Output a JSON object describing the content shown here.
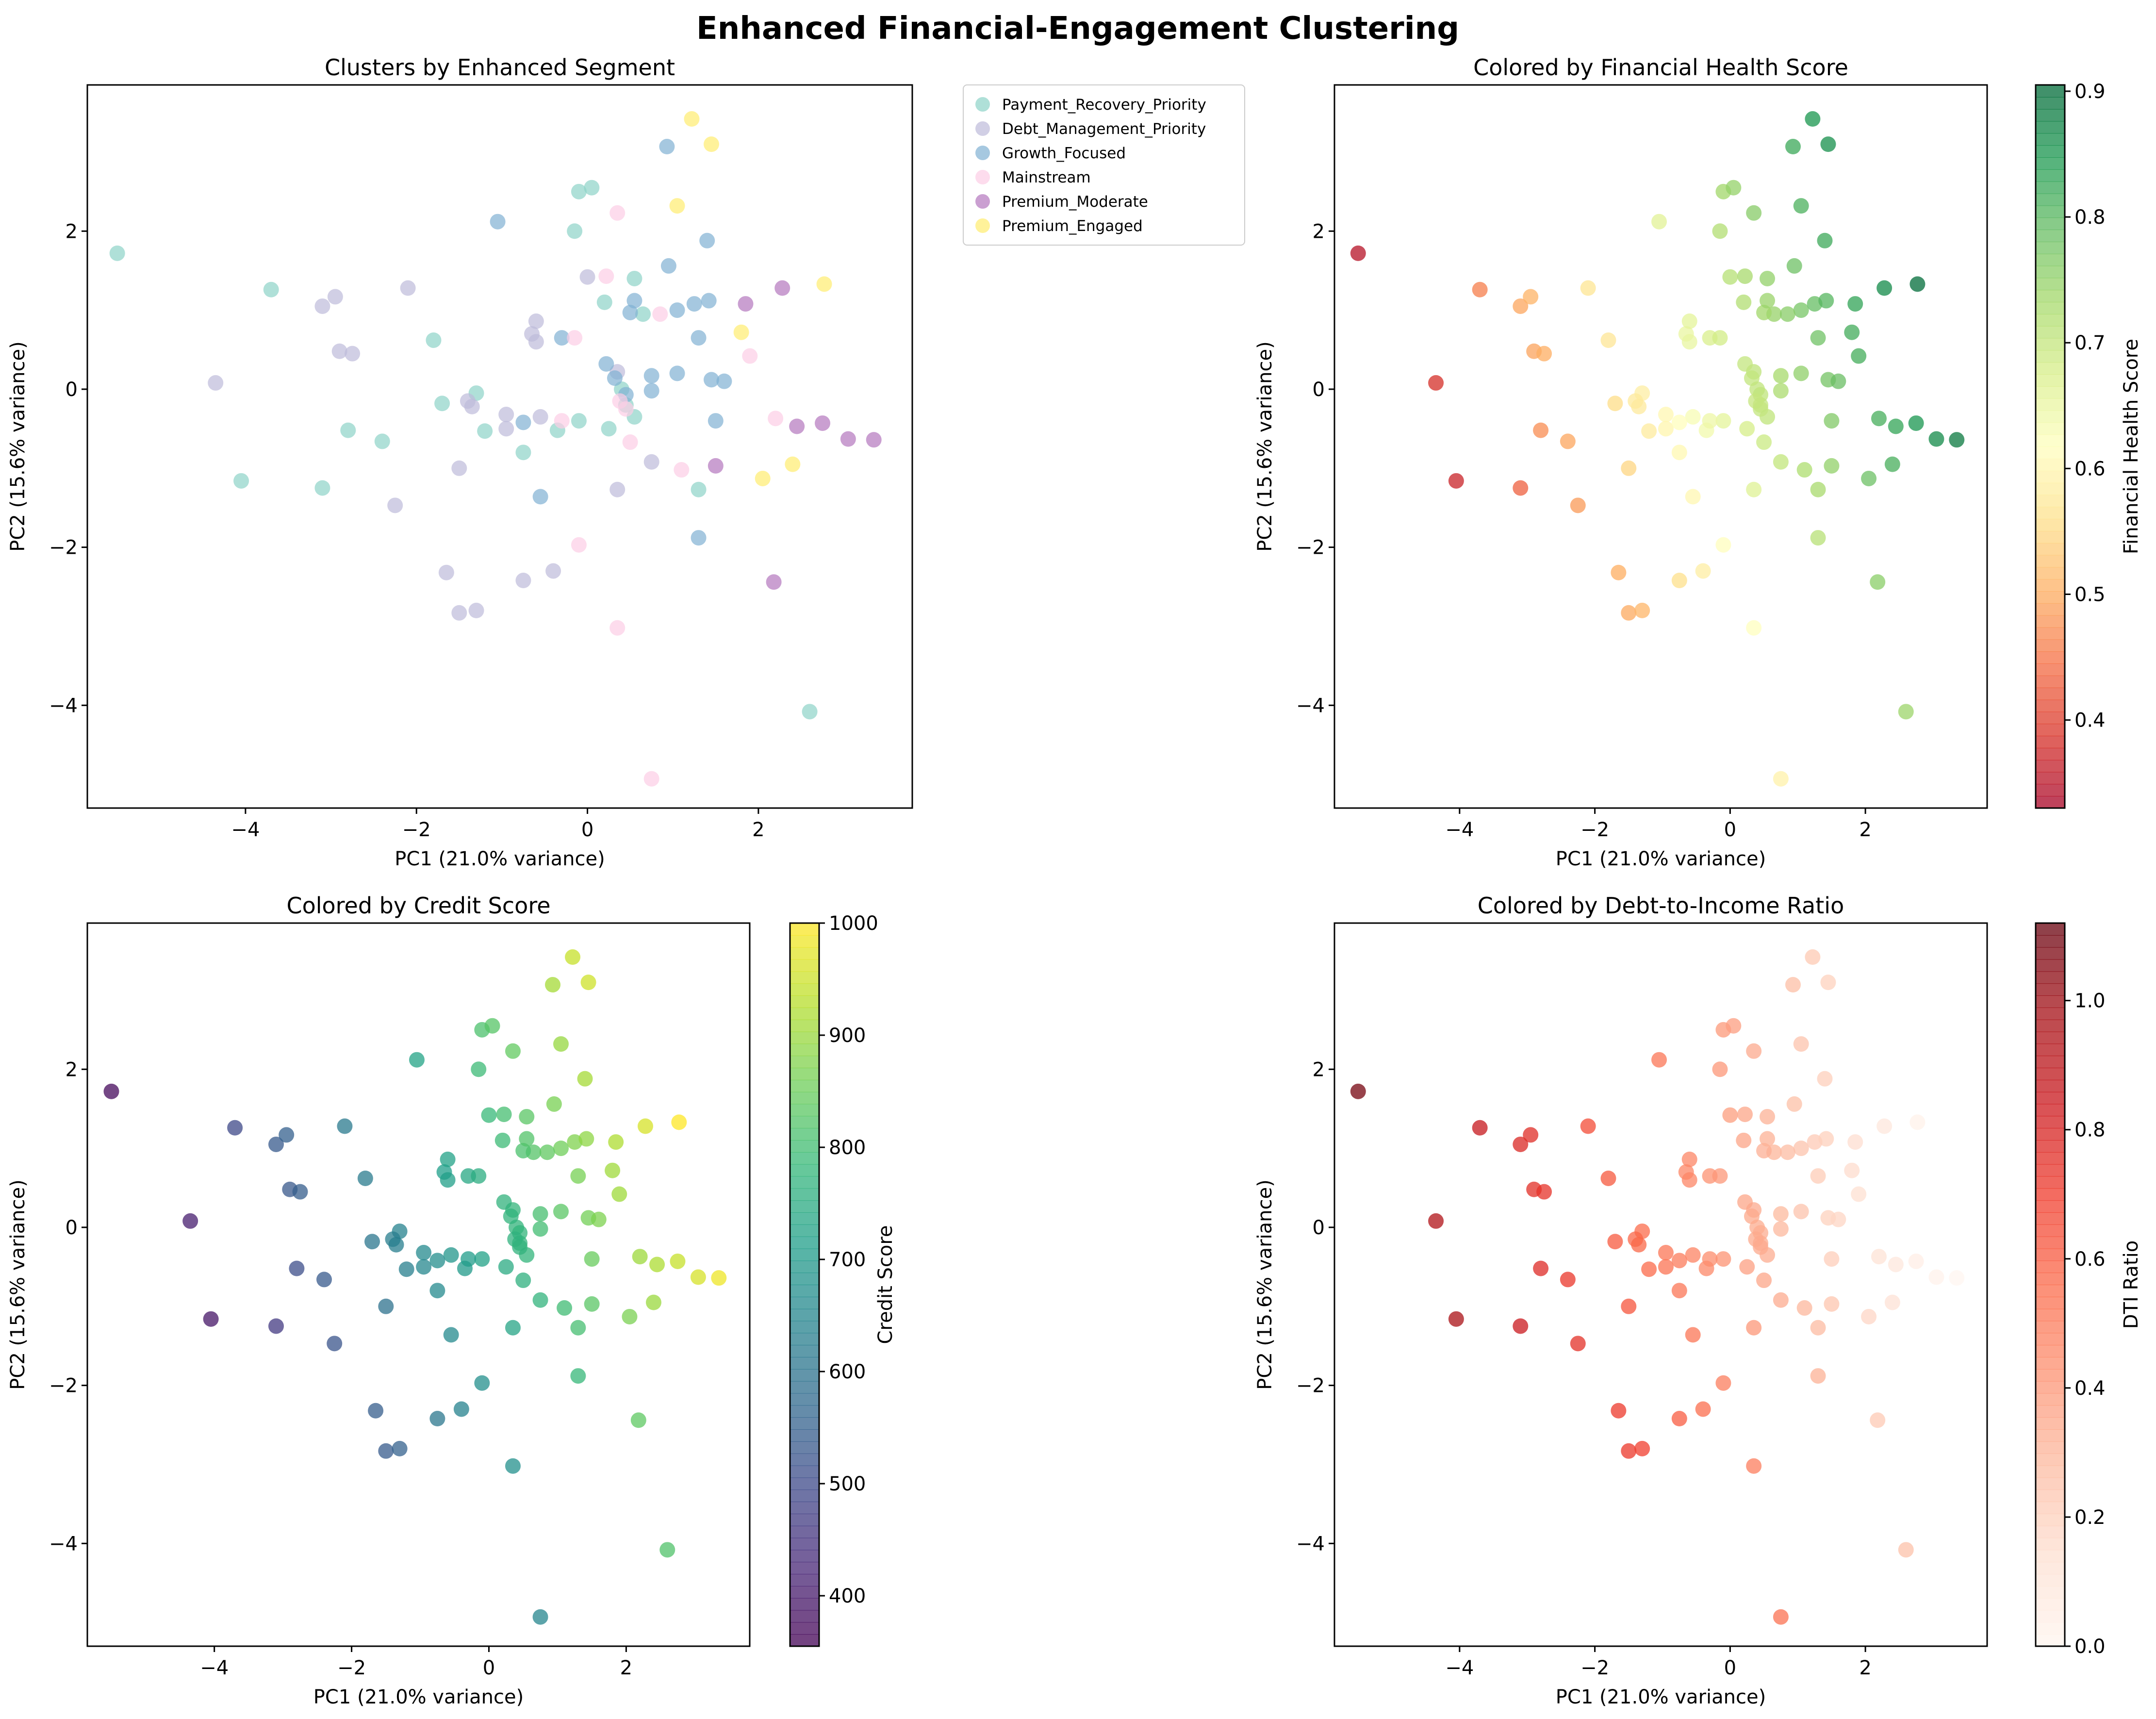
{
  "figure": {
    "title": "Enhanced Financial-Engagement Clustering"
  },
  "colors": {
    "Payment_Recovery_Priority": "#8dd3c7",
    "Debt_Management_Priority": "#bebada",
    "Growth_Focused": "#80b1d3",
    "Mainstream": "#fccde5",
    "Premium_Moderate": "#b376bd",
    "Premium_Engaged": "#ffed6f"
  },
  "chart_data": [
    {
      "type": "scatter",
      "title": "Clusters by Enhanced Segment",
      "xlabel": "PC1 (21.0% variance)",
      "ylabel": "PC2 (15.6% variance)",
      "xlim": [
        -5.85,
        3.8
      ],
      "ylim": [
        -5.3,
        3.85
      ],
      "xticks": [
        -4,
        -2,
        0,
        2
      ],
      "yticks": [
        -4,
        -2,
        0,
        2
      ],
      "grid": false,
      "legend": "outside-upper-right",
      "color_by": "segment",
      "series": [
        {
          "name": "Payment_Recovery_Priority",
          "points": [
            [
              -5.5,
              1.72
            ],
            [
              -3.7,
              1.26
            ],
            [
              -4.05,
              -1.16
            ],
            [
              -3.1,
              -1.25
            ],
            [
              -2.8,
              -0.52
            ],
            [
              -2.4,
              -0.66
            ],
            [
              -1.8,
              0.62
            ],
            [
              -1.7,
              -0.18
            ],
            [
              -1.3,
              -0.05
            ],
            [
              -1.2,
              -0.53
            ],
            [
              -0.75,
              -0.8
            ],
            [
              -0.35,
              -0.52
            ],
            [
              -0.1,
              2.5
            ],
            [
              -0.1,
              -0.4
            ],
            [
              -0.15,
              2.0
            ],
            [
              0.05,
              2.55
            ],
            [
              0.2,
              1.1
            ],
            [
              0.25,
              -0.5
            ],
            [
              0.4,
              0.0
            ],
            [
              0.45,
              -0.2
            ],
            [
              0.55,
              1.4
            ],
            [
              0.55,
              -0.35
            ],
            [
              0.65,
              0.95
            ],
            [
              2.6,
              -4.08
            ],
            [
              1.3,
              -1.27
            ]
          ]
        },
        {
          "name": "Debt_Management_Priority",
          "points": [
            [
              -4.35,
              0.08
            ],
            [
              -3.1,
              1.05
            ],
            [
              -2.95,
              1.17
            ],
            [
              -2.9,
              0.48
            ],
            [
              -2.75,
              0.45
            ],
            [
              -2.1,
              1.28
            ],
            [
              -2.25,
              -1.47
            ],
            [
              -1.65,
              -2.32
            ],
            [
              -1.5,
              -2.83
            ],
            [
              -1.5,
              -1.0
            ],
            [
              -1.4,
              -0.15
            ],
            [
              -1.35,
              -0.22
            ],
            [
              -1.3,
              -2.8
            ],
            [
              -0.95,
              -0.32
            ],
            [
              -0.95,
              -0.5
            ],
            [
              -0.75,
              -2.42
            ],
            [
              -0.65,
              0.7
            ],
            [
              -0.6,
              0.86
            ],
            [
              -0.6,
              0.6
            ],
            [
              -0.55,
              -0.35
            ],
            [
              -0.4,
              -2.3
            ],
            [
              0.0,
              1.42
            ],
            [
              0.35,
              -1.27
            ],
            [
              0.35,
              0.22
            ],
            [
              0.75,
              -0.92
            ]
          ]
        },
        {
          "name": "Growth_Focused",
          "points": [
            [
              -1.05,
              2.12
            ],
            [
              -0.75,
              -0.42
            ],
            [
              -0.55,
              -1.36
            ],
            [
              -0.3,
              0.65
            ],
            [
              0.22,
              0.32
            ],
            [
              0.32,
              0.14
            ],
            [
              0.45,
              -0.07
            ],
            [
              0.5,
              0.97
            ],
            [
              0.55,
              1.12
            ],
            [
              0.75,
              0.17
            ],
            [
              0.75,
              -0.02
            ],
            [
              0.93,
              3.07
            ],
            [
              0.95,
              1.56
            ],
            [
              1.05,
              0.2
            ],
            [
              1.05,
              1.0
            ],
            [
              1.25,
              1.08
            ],
            [
              1.3,
              0.65
            ],
            [
              1.3,
              -1.88
            ],
            [
              1.4,
              1.88
            ],
            [
              1.42,
              1.12
            ],
            [
              1.45,
              0.12
            ],
            [
              1.5,
              -0.4
            ],
            [
              1.6,
              0.1
            ]
          ]
        },
        {
          "name": "Mainstream",
          "points": [
            [
              -0.3,
              -0.4
            ],
            [
              -0.15,
              0.65
            ],
            [
              -0.1,
              -1.97
            ],
            [
              0.22,
              1.43
            ],
            [
              0.35,
              2.23
            ],
            [
              0.35,
              -3.02
            ],
            [
              0.38,
              -0.15
            ],
            [
              0.45,
              -0.25
            ],
            [
              0.5,
              -0.67
            ],
            [
              0.75,
              -4.93
            ],
            [
              0.85,
              0.95
            ],
            [
              1.1,
              -1.02
            ],
            [
              1.9,
              0.42
            ],
            [
              2.2,
              -0.37
            ]
          ]
        },
        {
          "name": "Premium_Moderate",
          "points": [
            [
              1.5,
              -0.97
            ],
            [
              1.85,
              1.08
            ],
            [
              2.18,
              -2.44
            ],
            [
              2.28,
              1.28
            ],
            [
              2.45,
              -0.47
            ],
            [
              2.75,
              -0.43
            ],
            [
              3.05,
              -0.63
            ],
            [
              3.35,
              -0.64
            ]
          ]
        },
        {
          "name": "Premium_Engaged",
          "points": [
            [
              1.05,
              2.32
            ],
            [
              1.22,
              3.42
            ],
            [
              1.45,
              3.1
            ],
            [
              1.8,
              0.72
            ],
            [
              2.05,
              -1.13
            ],
            [
              2.4,
              -0.95
            ],
            [
              2.77,
              1.33
            ]
          ]
        }
      ]
    },
    {
      "type": "scatter",
      "title": "Colored by Financial Health Score",
      "xlabel": "PC1 (21.0% variance)",
      "ylabel": "PC2 (15.6% variance)",
      "xlim": [
        -5.85,
        3.8
      ],
      "ylim": [
        -5.3,
        3.85
      ],
      "xticks": [
        -4,
        -2,
        0,
        2
      ],
      "yticks": [
        -4,
        -2,
        0,
        2
      ],
      "grid": false,
      "colormap": "RdYlGn",
      "colorbar": {
        "label": "Financial Health Score",
        "range": [
          0.33,
          0.905
        ],
        "ticks": [
          0.4,
          0.5,
          0.6,
          0.7,
          0.8,
          0.9
        ],
        "tick_labels": [
          "0.4",
          "0.5",
          "0.6",
          "0.7",
          "0.8",
          "0.9"
        ]
      },
      "color_by": "Financial Health Score"
    },
    {
      "type": "scatter",
      "title": "Colored by Credit Score",
      "xlabel": "PC1 (21.0% variance)",
      "ylabel": "PC2 (15.6% variance)",
      "xlim": [
        -5.85,
        3.8
      ],
      "ylim": [
        -5.3,
        3.85
      ],
      "xticks": [
        -4,
        -2,
        0,
        2
      ],
      "yticks": [
        -4,
        -2,
        0,
        2
      ],
      "grid": false,
      "colormap": "viridis",
      "colorbar": {
        "label": "Credit Score",
        "range": [
          355,
          1000
        ],
        "ticks": [
          400,
          500,
          600,
          700,
          800,
          900,
          1000
        ],
        "tick_labels": [
          "400",
          "500",
          "600",
          "700",
          "800",
          "900",
          "1000"
        ]
      },
      "color_by": "Credit Score"
    },
    {
      "type": "scatter",
      "title": "Colored by Debt-to-Income Ratio",
      "xlabel": "PC1 (21.0% variance)",
      "ylabel": "PC2 (15.6% variance)",
      "xlim": [
        -5.85,
        3.8
      ],
      "ylim": [
        -5.3,
        3.85
      ],
      "xticks": [
        -4,
        -2,
        0,
        2
      ],
      "yticks": [
        -4,
        -2,
        0,
        2
      ],
      "grid": false,
      "colormap": "Reds",
      "colorbar": {
        "label": "DTI Ratio",
        "range": [
          0,
          1.12
        ],
        "ticks": [
          0,
          0.2,
          0.4,
          0.6,
          0.8,
          1.0
        ],
        "tick_labels": [
          "0.0",
          "0.2",
          "0.4",
          "0.6",
          "0.8",
          "1.0"
        ]
      },
      "color_by": "DTI Ratio"
    }
  ]
}
